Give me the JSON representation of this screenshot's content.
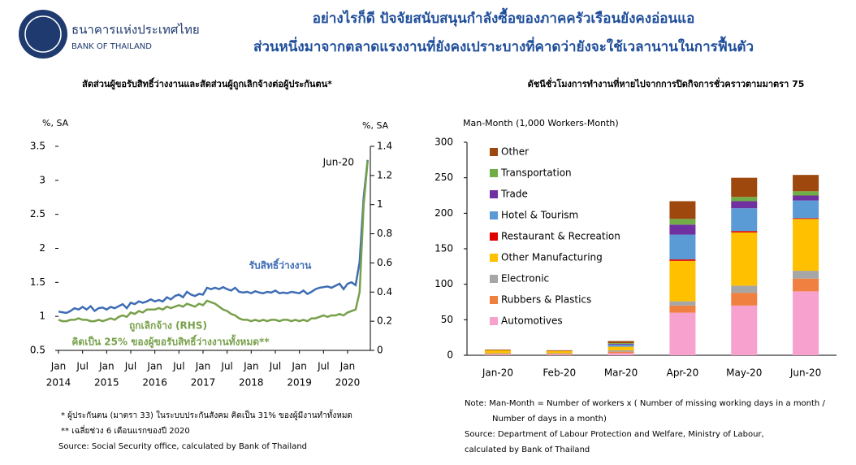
{
  "header": {
    "bank_th": "ธนาคารแห่งประเทศไทย",
    "bank_en": "BANK OF THAILAND",
    "title_lines": [
      "อย่างไรก็ดี ปัจจัยสนับสนุนกำลังซื้อของภาคครัวเรือนยังคงอ่อนแอ",
      "ส่วนหนึ่งมาจากตลาดแรงงานที่ยังคงเปราะบางที่คาดว่ายังจะใช้เวลานานในการฟื้นตัว"
    ]
  },
  "chart_data": [
    {
      "type": "line",
      "title": "สัดส่วนผู้ขอรับสิทธิ์ว่างงานและสัดส่วนผู้ถูกเลิกจ้างต่อผู้ประกันตน*",
      "y_label": "%, SA",
      "y2_label": "%, SA",
      "categories": [
        "Jan",
        null,
        null,
        null,
        null,
        null,
        "Jul",
        null,
        null,
        null,
        null,
        null,
        "Jan",
        null,
        null,
        null,
        null,
        null,
        "Jul",
        null,
        null,
        null,
        null,
        null,
        "Jan",
        null,
        null,
        null,
        null,
        null,
        "Jul",
        null,
        null,
        null,
        null,
        null,
        "Jan",
        null,
        null,
        null,
        null,
        null,
        "Jul",
        null,
        null,
        null,
        null,
        null,
        "Jan",
        null,
        null,
        null,
        null,
        null,
        "Jul",
        null,
        null,
        null,
        null,
        null,
        "Jan",
        null,
        null,
        null,
        null,
        null,
        "Jul",
        null,
        null,
        null,
        null,
        null,
        "Jan",
        null,
        null,
        null,
        null,
        null
      ],
      "years": [
        "2014",
        "2015",
        "2016",
        "2017",
        "2018",
        "2019",
        "2020"
      ],
      "ylim": [
        0.5,
        3.5
      ],
      "yticks": [
        0.5,
        1,
        1.5,
        2,
        2.5,
        3,
        3.5
      ],
      "y2lim": [
        0,
        1.4
      ],
      "y2ticks": [
        0,
        0.2,
        0.4,
        0.6,
        0.8,
        1,
        1.2,
        1.4
      ],
      "series": [
        {
          "name": "รับสิทธิ์ว่างงาน",
          "color": "#3e6db5",
          "values": [
            1.07,
            1.06,
            1.05,
            1.08,
            1.12,
            1.1,
            1.14,
            1.1,
            1.15,
            1.08,
            1.12,
            1.13,
            1.1,
            1.14,
            1.12,
            1.15,
            1.18,
            1.12,
            1.2,
            1.18,
            1.22,
            1.2,
            1.22,
            1.25,
            1.22,
            1.24,
            1.22,
            1.28,
            1.25,
            1.3,
            1.32,
            1.28,
            1.36,
            1.32,
            1.3,
            1.33,
            1.32,
            1.42,
            1.4,
            1.42,
            1.4,
            1.43,
            1.4,
            1.38,
            1.42,
            1.36,
            1.35,
            1.36,
            1.34,
            1.37,
            1.35,
            1.34,
            1.36,
            1.35,
            1.38,
            1.34,
            1.35,
            1.34,
            1.36,
            1.35,
            1.34,
            1.38,
            1.33,
            1.36,
            1.4,
            1.42,
            1.43,
            1.44,
            1.42,
            1.45,
            1.48,
            1.4,
            1.48,
            1.5,
            1.46,
            1.8,
            2.75,
            3.3
          ]
        },
        {
          "name": "ถูกเลิกจ้าง (RHS)",
          "color": "#77a04a",
          "axis": "y2",
          "values": [
            0.21,
            0.2,
            0.2,
            0.21,
            0.21,
            0.22,
            0.21,
            0.21,
            0.2,
            0.2,
            0.21,
            0.2,
            0.21,
            0.22,
            0.21,
            0.23,
            0.24,
            0.23,
            0.26,
            0.25,
            0.27,
            0.26,
            0.28,
            0.28,
            0.28,
            0.29,
            0.28,
            0.3,
            0.29,
            0.3,
            0.31,
            0.3,
            0.32,
            0.31,
            0.3,
            0.32,
            0.31,
            0.34,
            0.33,
            0.32,
            0.3,
            0.28,
            0.27,
            0.25,
            0.24,
            0.22,
            0.21,
            0.21,
            0.2,
            0.21,
            0.2,
            0.21,
            0.2,
            0.21,
            0.21,
            0.2,
            0.21,
            0.21,
            0.2,
            0.21,
            0.2,
            0.21,
            0.2,
            0.22,
            0.22,
            0.23,
            0.24,
            0.23,
            0.24,
            0.24,
            0.25,
            0.24,
            0.26,
            0.27,
            0.28,
            0.4,
            1.0,
            1.3
          ]
        }
      ],
      "annotations": [
        "Jun-20",
        "คิดเป็น 25% ของผู้ขอรับสิทธิ์ว่างงานทั้งหมด**"
      ],
      "notes": [
        "* ผู้ประกันตน (มาตรา 33) ในระบบประกันสังคม คิดเป็น 31% ของผู้มีงานทำทั้งหมด",
        "** เฉลี่ยช่วง 6 เดือนแรกของปี 2020",
        "Source: Social Security office, calculated by Bank of Thailand"
      ]
    },
    {
      "type": "stacked_bar",
      "title": "ดัชนีชั่วโมงการทำงานที่หายไปจากการปิดกิจการชั่วคราวตามมาตรา 75",
      "y_label": "Man-Month (1,000 Workers-Month)",
      "categories": [
        "Jan-20",
        "Feb-20",
        "Mar-20",
        "Apr-20",
        "May-20",
        "Jun-20"
      ],
      "ylim": [
        0,
        300
      ],
      "yticks": [
        0,
        50,
        100,
        150,
        200,
        250,
        300
      ],
      "series": [
        {
          "name": "Automotives",
          "color": "#f7a1cf",
          "values": [
            1,
            1,
            3,
            60,
            70,
            90
          ]
        },
        {
          "name": "Rubbers & Plastics",
          "color": "#f08040",
          "values": [
            1,
            1,
            2,
            10,
            18,
            18
          ]
        },
        {
          "name": "Electronic",
          "color": "#a6a6a6",
          "values": [
            1,
            1,
            2,
            6,
            10,
            11
          ]
        },
        {
          "name": "Other Manufacturing",
          "color": "#ffc000",
          "values": [
            4,
            3,
            5,
            57,
            75,
            73
          ]
        },
        {
          "name": "Restaurant & Recreation",
          "color": "#e00000",
          "values": [
            0,
            0,
            0,
            2,
            2,
            1
          ]
        },
        {
          "name": "Hotel & Tourism",
          "color": "#5b9bd5",
          "values": [
            0,
            0,
            3,
            35,
            32,
            25
          ]
        },
        {
          "name": "Trade",
          "color": "#7030a0",
          "values": [
            0,
            0,
            1,
            14,
            10,
            7
          ]
        },
        {
          "name": "Transportation",
          "color": "#70ad47",
          "values": [
            0,
            0,
            1,
            8,
            6,
            6
          ]
        },
        {
          "name": "Other",
          "color": "#9e480e",
          "values": [
            1,
            1,
            3,
            25,
            27,
            23
          ]
        }
      ],
      "notes": [
        "Note:  Man-Month = Number of workers x ( Number of missing working days in a month /",
        "Number of days in a month)",
        "Source: Department of Labour Protection and Welfare, Ministry of Labour,",
        "calculated by Bank of Thailand"
      ]
    }
  ]
}
